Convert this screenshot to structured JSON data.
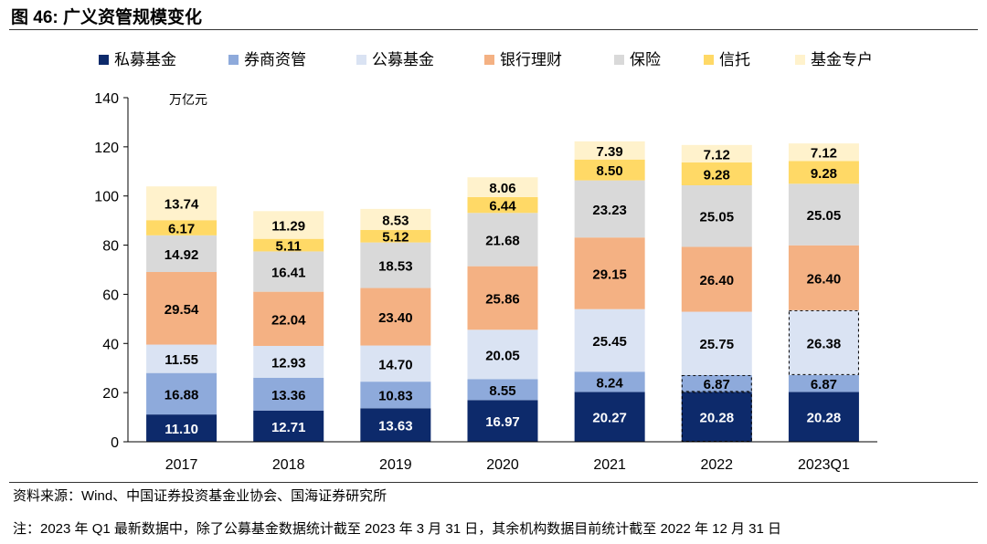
{
  "title": "图 46:  广义资管规模变化",
  "chart_data": {
    "type": "bar",
    "stacked": true,
    "categories": [
      "2017",
      "2018",
      "2019",
      "2020",
      "2021",
      "2022",
      "2023Q1"
    ],
    "unit_label": "万亿元",
    "ylim": [
      0,
      140
    ],
    "yticks": [
      0,
      20,
      40,
      60,
      80,
      100,
      120,
      140
    ],
    "legend_position": "top",
    "series": [
      {
        "name": "私募基金",
        "color": "#0d2a6b",
        "values": [
          11.1,
          12.71,
          13.63,
          16.97,
          20.27,
          20.28,
          20.28
        ]
      },
      {
        "name": "券商资管",
        "color": "#8eaadb",
        "values": [
          16.88,
          13.36,
          10.83,
          8.55,
          8.24,
          6.87,
          6.87
        ]
      },
      {
        "name": "公募基金",
        "color": "#dae3f3",
        "values": [
          11.55,
          12.93,
          14.7,
          20.05,
          25.45,
          25.75,
          26.38
        ]
      },
      {
        "name": "银行理财",
        "color": "#f4b183",
        "values": [
          29.54,
          22.04,
          23.4,
          25.86,
          29.15,
          26.4,
          26.4
        ]
      },
      {
        "name": "保险",
        "color": "#d9d9d9",
        "values": [
          14.92,
          16.41,
          18.53,
          21.68,
          23.23,
          25.05,
          25.05
        ]
      },
      {
        "name": "信托",
        "color": "#ffd966",
        "values": [
          6.17,
          5.11,
          5.12,
          6.44,
          8.5,
          9.28,
          9.28
        ]
      },
      {
        "name": "基金专户",
        "color": "#fff2cc",
        "values": [
          13.74,
          11.29,
          8.53,
          8.06,
          7.39,
          7.12,
          7.12
        ]
      }
    ],
    "value_labels": [
      [
        "11.10",
        "12.71",
        "13.63",
        "16.97",
        "20.27",
        "20.28",
        "20.28"
      ],
      [
        "16.88",
        "13.36",
        "10.83",
        "8.55",
        "8.24",
        "6.87",
        "6.87"
      ],
      [
        "11.55",
        "12.93",
        "14.70",
        "20.05",
        "25.45",
        "25.75",
        "26.38"
      ],
      [
        "29.54",
        "22.04",
        "23.40",
        "25.86",
        "29.15",
        "26.40",
        "26.40"
      ],
      [
        "14.92",
        "16.41",
        "18.53",
        "21.68",
        "23.23",
        "25.05",
        "25.05"
      ],
      [
        "6.17",
        "5.11",
        "5.12",
        "6.44",
        "8.50",
        "9.28",
        "9.28"
      ],
      [
        "13.74",
        "11.29",
        "8.53",
        "8.06",
        "7.39",
        "7.12",
        "7.12"
      ]
    ],
    "dashed_outlines": [
      [
        5,
        0
      ],
      [
        5,
        1
      ],
      [
        6,
        2
      ]
    ]
  },
  "source": "资料来源：Wind、中国证券投资基金业协会、国海证券研究所",
  "note": "注：2023 年 Q1 最新数据中，除了公募基金数据统计截至 2023 年 3 月 31 日，其余机构数据目前统计截至 2022 年 12 月 31 日"
}
